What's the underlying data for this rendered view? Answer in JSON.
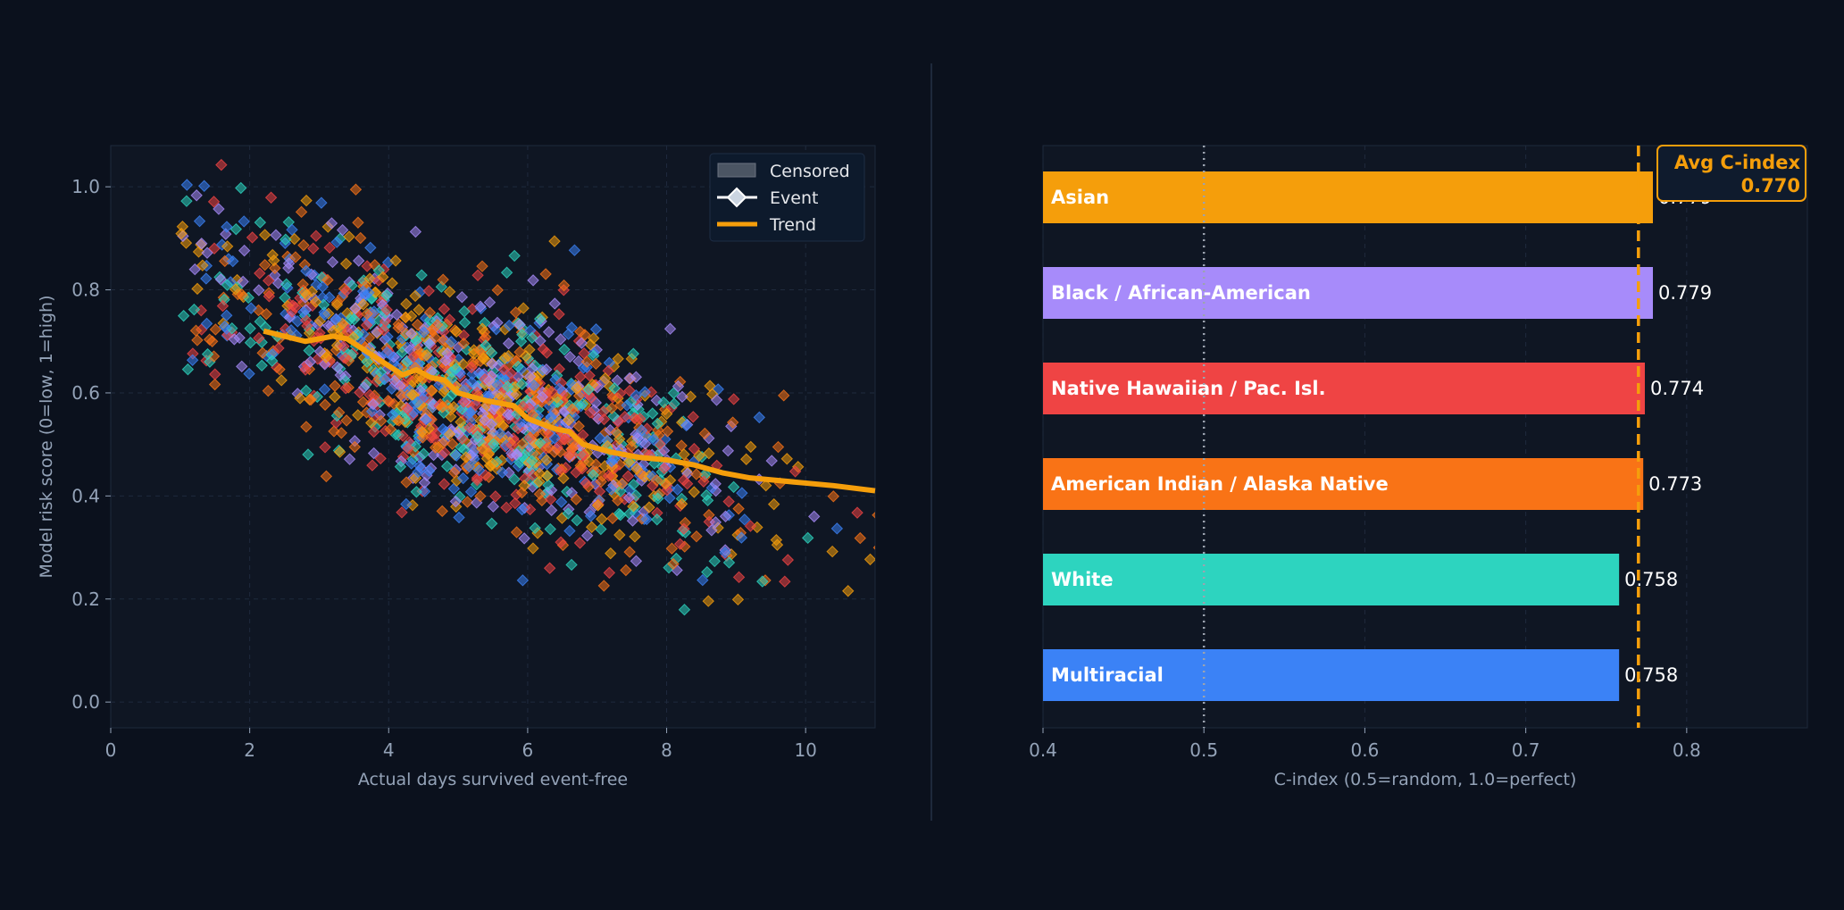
{
  "chart_data": [
    {
      "type": "scatter",
      "xlabel": "Actual days survived event-free",
      "ylabel": "Model risk score (0=low, 1=high)",
      "xlim": [
        0,
        11
      ],
      "ylim": [
        -0.05,
        1.08
      ],
      "xticks": [
        "0",
        "2",
        "4",
        "6",
        "8",
        "10"
      ],
      "yticks": [
        "0.0",
        "0.2",
        "0.4",
        "0.6",
        "0.8",
        "1.0"
      ],
      "grid": true,
      "legend_position": "top-right",
      "legend": [
        {
          "label": "Censored",
          "kind": "patch",
          "color": "#4b5563"
        },
        {
          "label": "Event",
          "kind": "diamond",
          "color": "#cbd5e1"
        },
        {
          "label": "Trend",
          "kind": "line",
          "color": "#f59e0b"
        }
      ],
      "point_colors": [
        "#f59e0b",
        "#a78bfa",
        "#ef4444",
        "#f97316",
        "#2dd4bf",
        "#3b82f6"
      ],
      "trend": {
        "x": [
          2.2,
          2.8,
          3.2,
          3.4,
          3.8,
          4.2,
          4.4,
          4.6,
          4.8,
          5.0,
          5.4,
          5.8,
          6.0,
          6.4,
          6.6,
          6.8,
          7.2,
          7.6,
          8.0,
          8.4,
          8.8,
          9.2,
          9.6,
          10.0,
          10.4,
          11.0
        ],
        "y": [
          0.72,
          0.7,
          0.71,
          0.705,
          0.67,
          0.635,
          0.645,
          0.63,
          0.625,
          0.6,
          0.585,
          0.575,
          0.55,
          0.53,
          0.525,
          0.5,
          0.485,
          0.475,
          0.47,
          0.46,
          0.445,
          0.435,
          0.43,
          0.425,
          0.42,
          0.41
        ]
      }
    },
    {
      "type": "bar",
      "orientation": "horizontal",
      "xlabel": "C-index (0.5=random, 1.0=perfect)",
      "xlim": [
        0.4,
        0.875
      ],
      "xticks": [
        "0.4",
        "0.5",
        "0.6",
        "0.7",
        "0.8"
      ],
      "categories": [
        "Asian",
        "Black / African-American",
        "Native Hawaiian / Pac. Isl.",
        "American Indian / Alaska Native",
        "White",
        "Multiracial"
      ],
      "values": [
        0.779,
        0.779,
        0.774,
        0.773,
        0.758,
        0.758
      ],
      "value_labels": [
        "0.779",
        "0.779",
        "0.774",
        "0.773",
        "0.758",
        "0.758"
      ],
      "colors": [
        "#f59e0b",
        "#a78bfa",
        "#ef4444",
        "#f97316",
        "#2dd4bf",
        "#3b82f6"
      ],
      "random_reference": 0.5,
      "average": 0.77,
      "average_label": "Avg C-index",
      "average_value_label": "0.770",
      "average_color": "#f59e0b"
    }
  ]
}
